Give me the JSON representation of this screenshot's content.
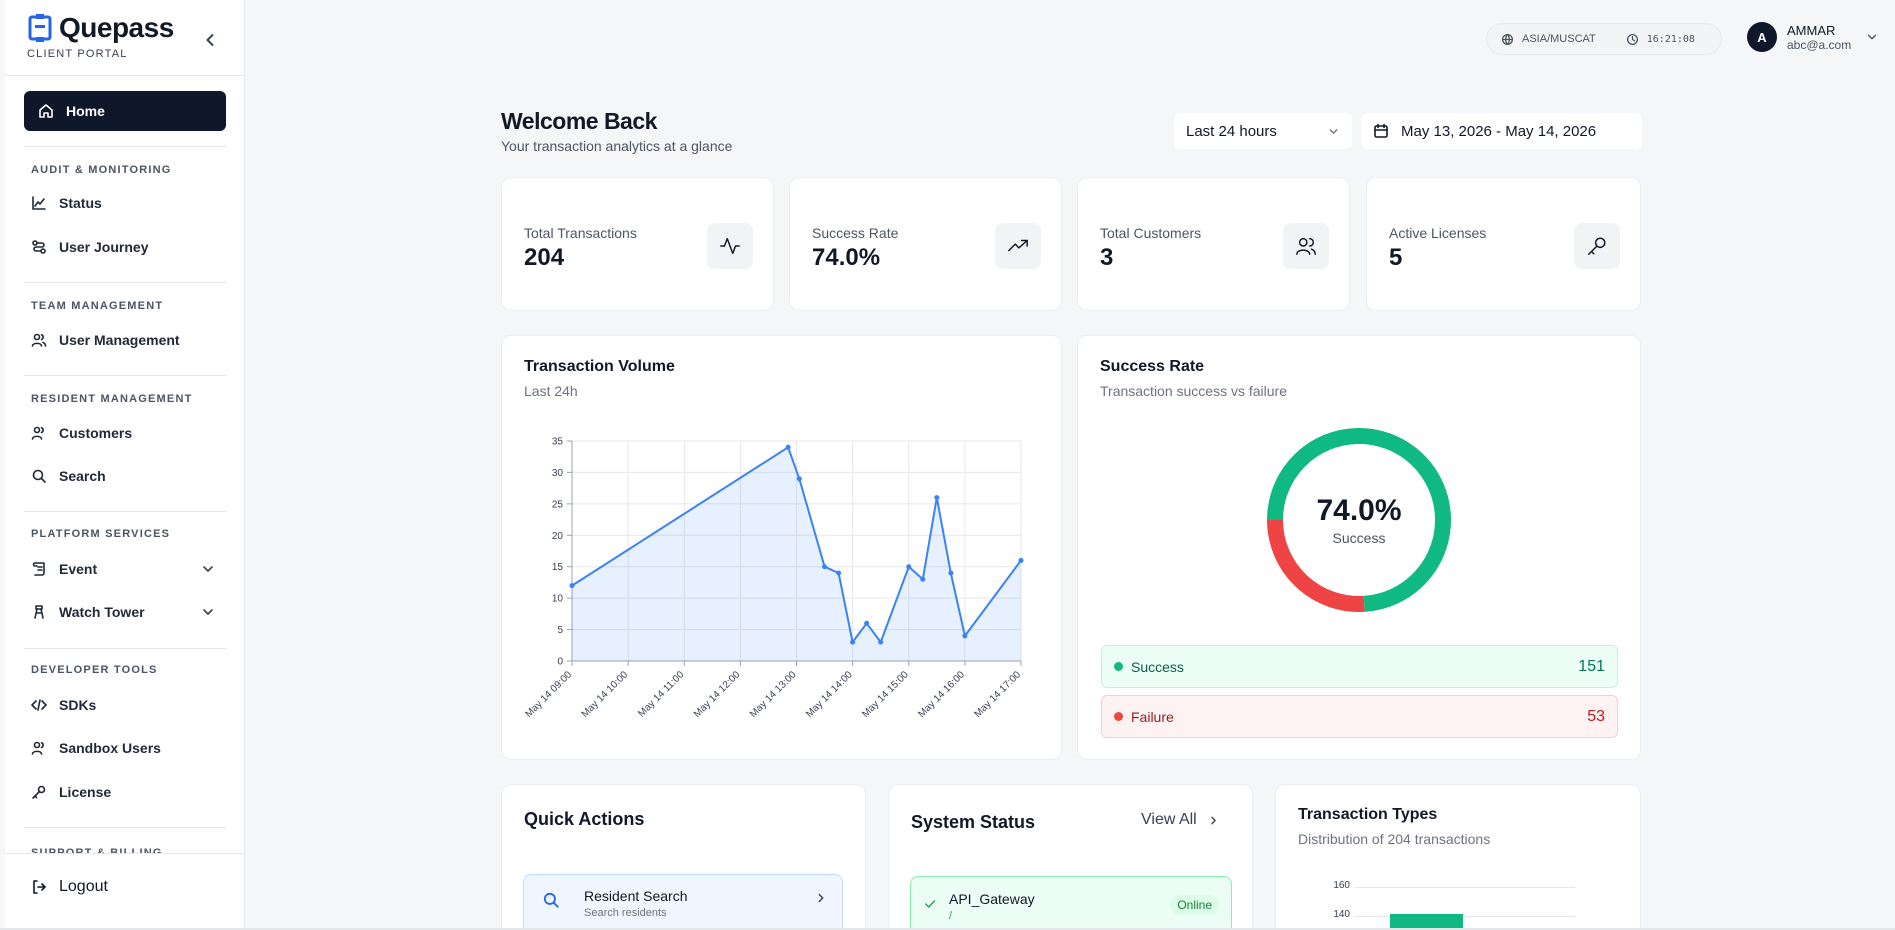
{
  "brand": {
    "name": "Quepass",
    "subtitle": "CLIENT PORTAL"
  },
  "sidebar": {
    "home": "Home",
    "sections": [
      {
        "title": "AUDIT & MONITORING",
        "items": [
          "Status",
          "User Journey"
        ]
      },
      {
        "title": "TEAM MANAGEMENT",
        "items": [
          "User Management"
        ]
      },
      {
        "title": "RESIDENT MANAGEMENT",
        "items": [
          "Customers",
          "Search"
        ]
      },
      {
        "title": "PLATFORM SERVICES",
        "items": [
          "Event",
          "Watch Tower"
        ]
      },
      {
        "title": "DEVELOPER TOOLS",
        "items": [
          "SDKs",
          "Sandbox Users",
          "License"
        ]
      },
      {
        "title": "SUPPORT & BILLING",
        "items": []
      }
    ],
    "logout": "Logout"
  },
  "topbar": {
    "timezone": "ASIA/MUSCAT",
    "time": "16:21:08"
  },
  "user": {
    "initial": "A",
    "name": "AMMAR",
    "email": "abc@a.com"
  },
  "header": {
    "title": "Welcome Back",
    "subtitle": "Your transaction analytics at a glance",
    "range": "Last 24 hours",
    "date_range": "May 13, 2026 - May 14, 2026"
  },
  "stats": [
    {
      "label": "Total Transactions",
      "value": "204",
      "icon": "activity-icon"
    },
    {
      "label": "Success Rate",
      "value": "74.0%",
      "icon": "trending-up-icon"
    },
    {
      "label": "Total Customers",
      "value": "3",
      "icon": "users-icon"
    },
    {
      "label": "Active Licenses",
      "value": "5",
      "icon": "key-icon"
    }
  ],
  "volume": {
    "title": "Transaction Volume",
    "subtitle": "Last 24h"
  },
  "success": {
    "title": "Success Rate",
    "subtitle": "Transaction success vs failure",
    "center_value": "74.0%",
    "center_label": "Success",
    "success_label": "Success",
    "success_count": "151",
    "failure_label": "Failure",
    "failure_count": "53",
    "success_color": "#10b981",
    "failure_color": "#ef4444"
  },
  "quick_actions": {
    "title": "Quick Actions",
    "item_title": "Resident Search",
    "item_sub": "Search residents"
  },
  "system_status": {
    "title": "System Status",
    "view_all": "View All",
    "item_name": "API_Gateway",
    "item_path": "/",
    "item_status": "Online"
  },
  "transaction_types": {
    "title": "Transaction Types",
    "subtitle": "Distribution of 204 transactions",
    "visible_ticks": [
      "160",
      "140"
    ]
  },
  "chart_data": [
    {
      "type": "area",
      "title": "Transaction Volume",
      "x_ticks": [
        "May 14 09:00",
        "May 14 10:00",
        "May 14 11:00",
        "May 14 12:00",
        "May 14 13:00",
        "May 14 14:00",
        "May 14 15:00",
        "May 14 16:00",
        "May 14 17:00"
      ],
      "x_hours": [
        9.0,
        12.85,
        13.05,
        13.5,
        13.75,
        14.0,
        14.25,
        14.5,
        15.0,
        15.25,
        15.5,
        15.75,
        16.0,
        17.0
      ],
      "y": [
        12,
        34,
        29,
        15,
        14,
        3,
        6,
        3,
        15,
        13,
        26,
        14,
        4,
        16
      ],
      "ylim": [
        0,
        35
      ],
      "y_ticks": [
        0,
        5,
        10,
        15,
        20,
        25,
        30,
        35
      ],
      "color": "#3b82f6",
      "grid": true
    },
    {
      "type": "pie",
      "title": "Success Rate",
      "labels": [
        "Success",
        "Failure"
      ],
      "values": [
        151,
        53
      ],
      "colors": [
        "#10b981",
        "#ef4444"
      ]
    }
  ]
}
